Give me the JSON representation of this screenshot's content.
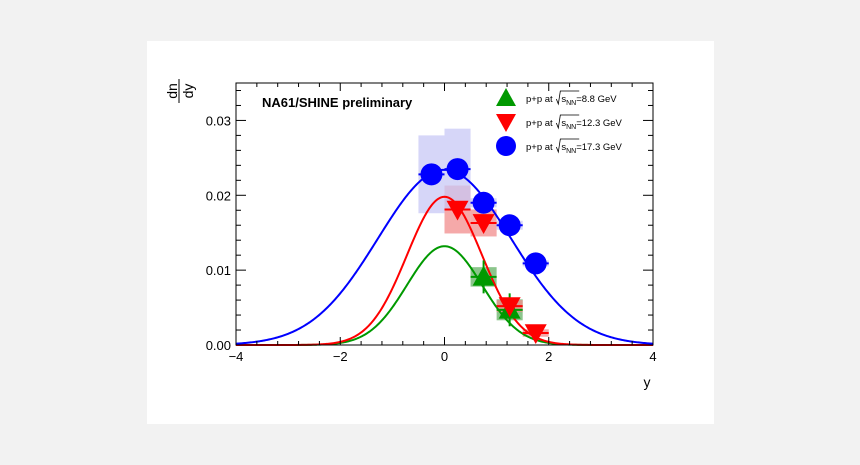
{
  "chart_data": {
    "type": "scatter",
    "title": "NA61/SHINE preliminary",
    "xlabel": "y",
    "ylabel": {
      "numerator": "dn",
      "denominator": "dy"
    },
    "xlim": [
      -4,
      4
    ],
    "ylim": [
      0,
      0.035
    ],
    "x_ticks": [
      -4,
      -2,
      0,
      2,
      4
    ],
    "x_tick_labels": [
      "−4",
      "−2",
      "0",
      "2",
      "4"
    ],
    "y_ticks": [
      0,
      0.01,
      0.02,
      0.03
    ],
    "y_tick_labels": [
      "0.00",
      "0.01",
      "0.02",
      "0.03"
    ],
    "grid": false,
    "legend_position": "top-right",
    "series": [
      {
        "name": {
          "pre": "p+p at ",
          "sqrt": "s",
          "sub": "NN",
          "post": "=8.8 GeV"
        },
        "marker": "triangle-up",
        "color": "#009900",
        "box_color": "#66b266",
        "x": [
          0.75,
          1.25
        ],
        "y": [
          0.0091,
          0.0047
        ],
        "yerr": [
          0.0022,
          0.0022
        ],
        "sys": [
          0.0013,
          0.0014
        ],
        "fit": {
          "amplitude": 0.0132,
          "mean": 0,
          "sigma": 0.72
        }
      },
      {
        "name": {
          "pre": "p+p at ",
          "sqrt": "s",
          "sub": "NN",
          "post": "=12.3 GeV"
        },
        "marker": "triangle-down",
        "color": "#ff0000",
        "box_color": "#f28c8c",
        "x": [
          0.25,
          0.75,
          1.25,
          1.75
        ],
        "y": [
          0.0181,
          0.0163,
          0.0052,
          0.0016
        ],
        "yerr": [
          0.0006,
          0.0006,
          0.0005,
          0.0004
        ],
        "sys": [
          0.0032,
          0.0018,
          0.0008,
          0.0005
        ],
        "fit": {
          "amplitude": 0.0198,
          "mean": 0,
          "sigma": 0.72
        }
      },
      {
        "name": {
          "pre": "p+p at ",
          "sqrt": "s",
          "sub": "NN",
          "post": "=17.3 GeV"
        },
        "marker": "circle",
        "color": "#0000ff",
        "box_color": "#c8c8f5",
        "x": [
          -0.25,
          0.25,
          0.75,
          1.25,
          1.75
        ],
        "y": [
          0.0228,
          0.0235,
          0.019,
          0.016,
          0.0109
        ],
        "yerr": [
          0.0006,
          0.0006,
          0.0006,
          0.0006,
          0.0006
        ],
        "sys": [
          0.0052,
          0.0054,
          0.0006,
          0.0006,
          0.0004
        ],
        "fit": {
          "amplitude": 0.0234,
          "mean": 0,
          "sigma": 1.28
        }
      }
    ]
  }
}
